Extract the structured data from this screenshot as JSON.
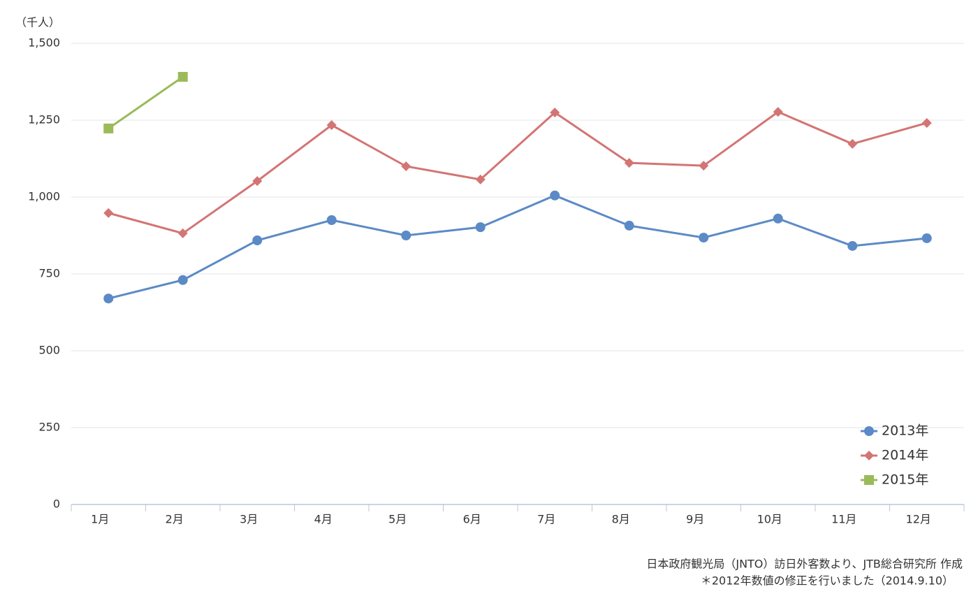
{
  "chart_data": {
    "type": "line",
    "y_axis_label": "（千人）",
    "categories": [
      "1月",
      "2月",
      "3月",
      "4月",
      "5月",
      "6月",
      "7月",
      "8月",
      "9月",
      "10月",
      "11月",
      "12月"
    ],
    "series": [
      {
        "name": "2013年",
        "color": "#5b8ac6",
        "marker": "circle",
        "values": [
          670,
          730,
          859,
          925,
          875,
          902,
          1005,
          907,
          868,
          930,
          841,
          866
        ]
      },
      {
        "name": "2014年",
        "color": "#d47474",
        "marker": "diamond",
        "values": [
          948,
          882,
          1052,
          1234,
          1100,
          1057,
          1275,
          1111,
          1102,
          1277,
          1173,
          1241
        ]
      },
      {
        "name": "2015年",
        "color": "#9bba59",
        "marker": "square",
        "values": [
          1223,
          1391,
          null,
          null,
          null,
          null,
          null,
          null,
          null,
          null,
          null,
          null
        ]
      }
    ],
    "ylim": [
      0,
      1500
    ],
    "yticks": [
      0,
      250,
      500,
      750,
      {
        "value": 1000,
        "label": "1,000"
      },
      {
        "value": 1250,
        "label": "1,250"
      },
      {
        "value": 1500,
        "label": "1,500"
      }
    ],
    "grid": true,
    "legend": "lower right",
    "notes": [
      "日本政府観光局（JNTO）訪日外客数より、JTB総合研究所 作成",
      "＊2012年数値の修正を行いました（2014.9.10）"
    ]
  }
}
